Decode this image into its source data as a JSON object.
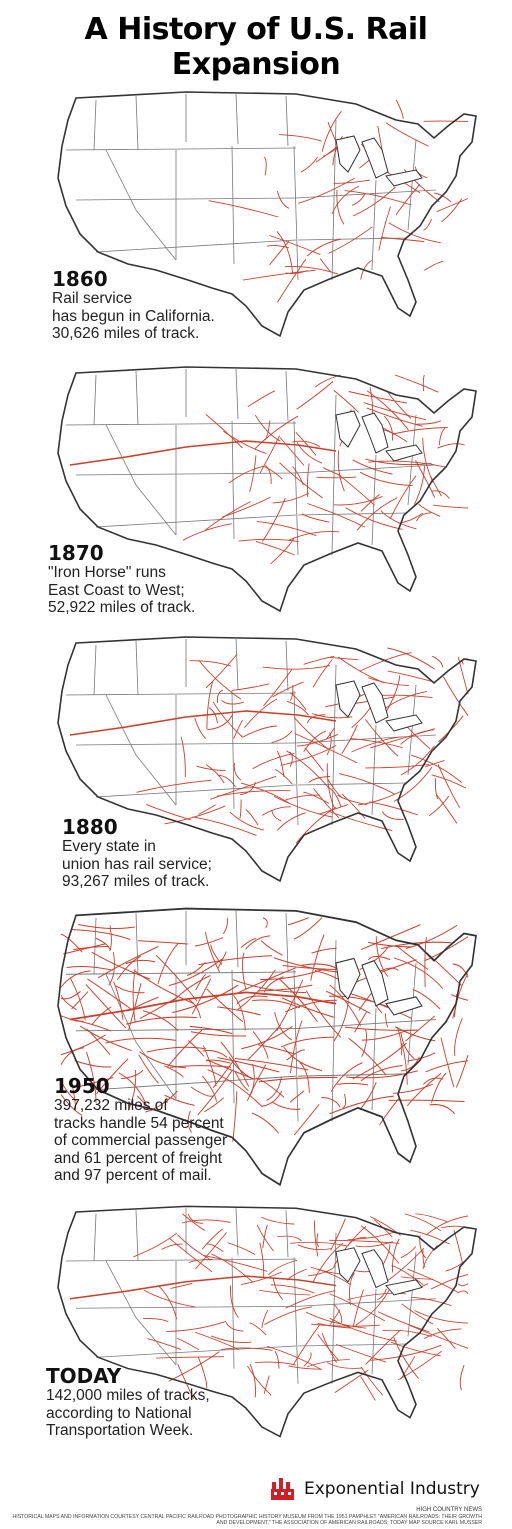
{
  "title": "A History of U.S. Rail Expansion",
  "colors": {
    "rail": "#c8402c",
    "border": "#333333",
    "brand_red": "#d21f26"
  },
  "panels": [
    {
      "year": "1860",
      "description": "Rail service\nhas begun in California.\n30,626 miles of track.",
      "rail_density": 0.15
    },
    {
      "year": "1870",
      "description": "\"Iron Horse\" runs\nEast Coast to West;\n52,922 miles of track.",
      "rail_density": 0.3
    },
    {
      "year": "1880",
      "description": "Every state in\nunion has rail service;\n93,267 miles of track.",
      "rail_density": 0.5
    },
    {
      "year": "1950",
      "description": "397,232 miles of\ntracks handle 54 percent\nof commercial passenger\nand 61 percent of freight\nand 97 percent of mail.",
      "rail_density": 1.0
    },
    {
      "year": "TODAY",
      "description": "142,000 miles of tracks,\naccording to National\nTransportation Week.",
      "rail_density": 0.6
    }
  ],
  "brand": {
    "name": "Exponential Industry",
    "icon": "factory-icon"
  },
  "credits": {
    "source": "HIGH COUNTRY NEWS",
    "text": "HISTORICAL MAPS AND INFORMATION COURTESY CENTRAL PACIFIC RAILROAD PHOTOGRAPHIC HISTORY MUSEUM FROM THE 1951 PAMPHLET \"AMERICAN RAILROADS: THEIR GROWTH AND DEVELOPMENT,\" THE ASSOCIATION OF AMERICAN RAILROADS; TODAY MAP SOURCE KARL MUSSER"
  }
}
